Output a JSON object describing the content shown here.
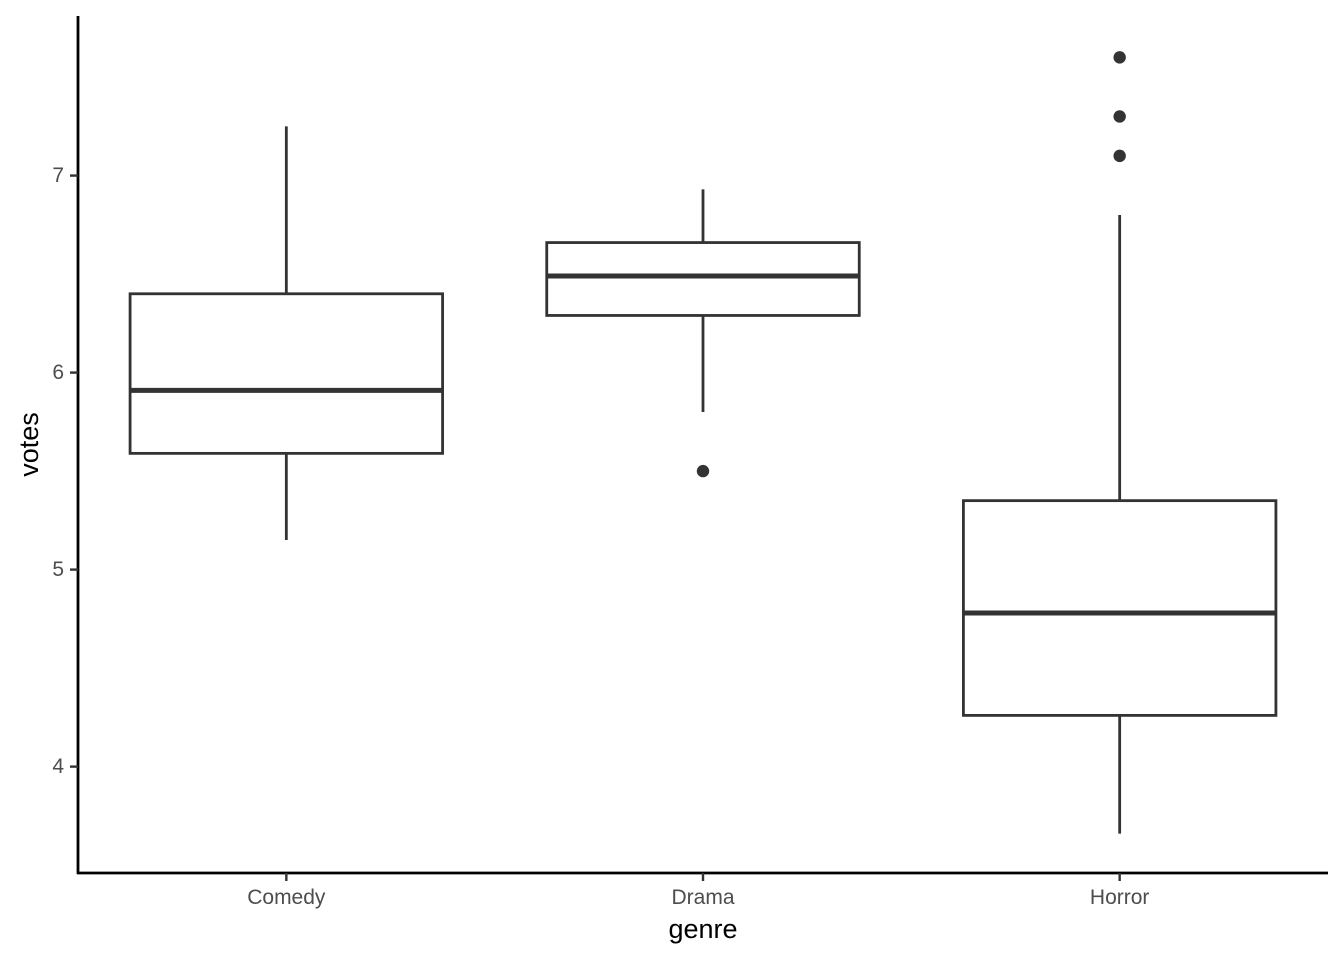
{
  "chart_data": {
    "type": "boxplot",
    "xlabel": "genre",
    "ylabel": "votes",
    "ylim": [
      3.46,
      7.81
    ],
    "yticks": [
      4,
      5,
      6,
      7
    ],
    "grid": false,
    "legend": "none",
    "categories": [
      "Comedy",
      "Drama",
      "Horror"
    ],
    "boxes": [
      {
        "category": "Comedy",
        "min": 5.15,
        "q1": 5.59,
        "median": 5.91,
        "q3": 6.4,
        "max": 7.25,
        "outliers": []
      },
      {
        "category": "Drama",
        "min": 5.8,
        "q1": 6.29,
        "median": 6.49,
        "q3": 6.66,
        "max": 6.93,
        "outliers": [
          5.5
        ]
      },
      {
        "category": "Horror",
        "min": 3.66,
        "q1": 4.26,
        "median": 4.78,
        "q3": 5.35,
        "max": 6.8,
        "outliers": [
          7.1,
          7.3,
          7.6
        ]
      }
    ],
    "colors": {
      "box_stroke": "#333333",
      "box_fill": "#ffffff",
      "axis": "#000000",
      "tick_text": "#4d4d4d",
      "title_text": "#000000"
    }
  }
}
